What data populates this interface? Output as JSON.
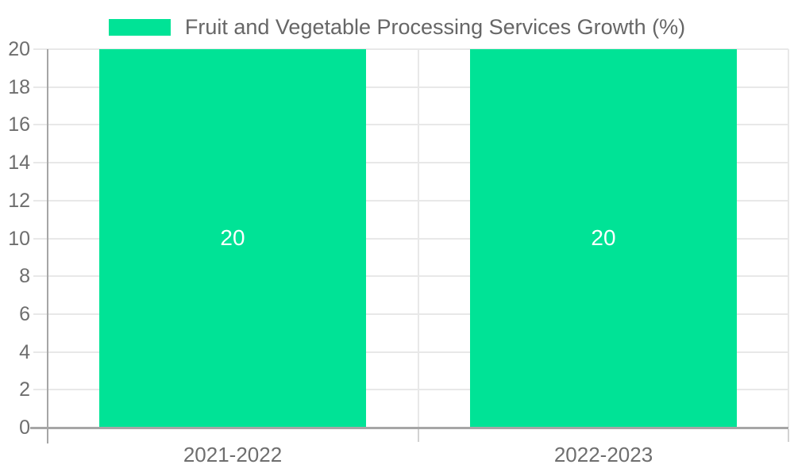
{
  "legend": {
    "label": "Fruit and Vegetable Processing Services Growth (%)",
    "marker_color": "#00E396"
  },
  "chart_data": {
    "type": "bar",
    "title": "",
    "xlabel": "",
    "ylabel": "",
    "categories": [
      "2021-2022",
      "2022-2023"
    ],
    "series": [
      {
        "name": "Fruit and Vegetable Processing Services Growth (%)",
        "color": "#00E396",
        "values": [
          20,
          20
        ]
      }
    ],
    "data_labels": [
      "20",
      "20"
    ],
    "y_ticks": [
      0,
      2,
      4,
      6,
      8,
      10,
      12,
      14,
      16,
      18,
      20
    ],
    "ylim": [
      0,
      20
    ],
    "grid": true,
    "legend_position": "top",
    "colors": {
      "bar": "#00E396",
      "grid_line": "#e8e8e8",
      "axis_line": "#a6a6a6",
      "below_axis_tick": "#d2d2d2",
      "tick_text": "#6e6e6e",
      "legend_text": "#666666",
      "data_label_text": "#ffffff",
      "background": "#ffffff"
    }
  }
}
